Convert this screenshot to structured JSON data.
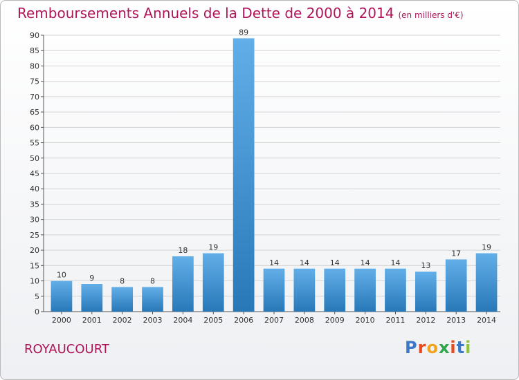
{
  "title": "Remboursements Annuels de la Dette de 2000 à 2014",
  "title_unit": "(en milliers d'€)",
  "commune": "ROYAUCOURT",
  "logo": {
    "text": "Proxiti",
    "letter_colors": [
      "#3a78c8",
      "#e64a1e",
      "#f2a21b",
      "#2fa64a",
      "#e64a1e",
      "#3a78c8",
      "#8fc43c"
    ]
  },
  "colors": {
    "bar_top": "#62aee8",
    "bar_bottom": "#2878b8",
    "title": "#b0155a",
    "grid": "#d4d4d4"
  },
  "chart_data": {
    "type": "bar",
    "title": "Remboursements Annuels de la Dette de 2000 à 2014",
    "xlabel": "",
    "ylabel": "",
    "categories": [
      "2000",
      "2001",
      "2002",
      "2003",
      "2004",
      "2005",
      "2006",
      "2007",
      "2008",
      "2009",
      "2010",
      "2011",
      "2012",
      "2013",
      "2014"
    ],
    "values": [
      10,
      9,
      8,
      8,
      18,
      19,
      89,
      14,
      14,
      14,
      14,
      14,
      13,
      17,
      19
    ],
    "ylim": [
      0,
      90
    ],
    "yticks": [
      0,
      5,
      10,
      15,
      20,
      25,
      30,
      35,
      40,
      45,
      50,
      55,
      60,
      65,
      70,
      75,
      80,
      85,
      90
    ],
    "grid": true,
    "legend": "none"
  }
}
